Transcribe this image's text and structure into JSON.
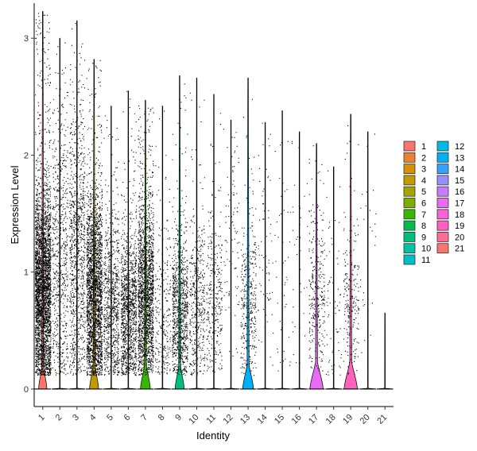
{
  "chart_data": {
    "type": "violin",
    "xlabel": "Identity",
    "ylabel": "Expression Level",
    "ylim": [
      -0.15,
      3.3
    ],
    "yticks": [
      0,
      1,
      2,
      3
    ],
    "grid": false,
    "legend_position": "right",
    "categories": [
      "1",
      "2",
      "3",
      "4",
      "5",
      "6",
      "7",
      "8",
      "9",
      "10",
      "11",
      "12",
      "13",
      "14",
      "15",
      "16",
      "17",
      "18",
      "19",
      "20",
      "21"
    ],
    "series": [
      {
        "name": "1",
        "color": "#F8766D",
        "max": 3.23,
        "points": 3200,
        "zero_width": 0.5,
        "nz_mean": 0.85,
        "nz_sd": 0.45
      },
      {
        "name": "2",
        "color": "#EA8331",
        "max": 3.0,
        "points": 650,
        "zero_width": 0.0,
        "nz_mean": 1.05,
        "nz_sd": 0.6
      },
      {
        "name": "3",
        "color": "#D89000",
        "max": 3.15,
        "points": 950,
        "zero_width": 0.0,
        "nz_mean": 1.15,
        "nz_sd": 0.6
      },
      {
        "name": "4",
        "color": "#C09B00",
        "max": 2.82,
        "points": 2400,
        "zero_width": 0.55,
        "nz_mean": 0.8,
        "nz_sd": 0.45
      },
      {
        "name": "5",
        "color": "#A3A500",
        "max": 2.42,
        "points": 800,
        "zero_width": 0.0,
        "nz_mean": 0.7,
        "nz_sd": 0.4
      },
      {
        "name": "6",
        "color": "#7CAE00",
        "max": 2.55,
        "points": 1200,
        "zero_width": 0.0,
        "nz_mean": 0.65,
        "nz_sd": 0.35
      },
      {
        "name": "7",
        "color": "#39B600",
        "max": 2.47,
        "points": 1900,
        "zero_width": 0.6,
        "nz_mean": 0.8,
        "nz_sd": 0.4
      },
      {
        "name": "8",
        "color": "#00BB4E",
        "max": 2.42,
        "points": 250,
        "zero_width": 0.0,
        "nz_mean": 0.6,
        "nz_sd": 0.4
      },
      {
        "name": "9",
        "color": "#00BF7D",
        "max": 2.68,
        "points": 900,
        "zero_width": 0.55,
        "nz_mean": 0.65,
        "nz_sd": 0.35
      },
      {
        "name": "10",
        "color": "#00C1A3",
        "max": 2.66,
        "points": 420,
        "zero_width": 0.0,
        "nz_mean": 0.7,
        "nz_sd": 0.4
      },
      {
        "name": "11",
        "color": "#00BFC4",
        "max": 2.52,
        "points": 300,
        "zero_width": 0.0,
        "nz_mean": 0.75,
        "nz_sd": 0.35
      },
      {
        "name": "12",
        "color": "#00BAE0",
        "max": 2.3,
        "points": 90,
        "zero_width": 0.0,
        "nz_mean": 1.3,
        "nz_sd": 0.5
      },
      {
        "name": "13",
        "color": "#00B0F6",
        "max": 2.66,
        "points": 360,
        "zero_width": 0.65,
        "nz_mean": 0.75,
        "nz_sd": 0.35
      },
      {
        "name": "14",
        "color": "#35A2FF",
        "max": 2.28,
        "points": 70,
        "zero_width": 0.0,
        "nz_mean": 1.2,
        "nz_sd": 0.5
      },
      {
        "name": "15",
        "color": "#9590FF",
        "max": 2.38,
        "points": 45,
        "zero_width": 0.0,
        "nz_mean": 0.9,
        "nz_sd": 0.6
      },
      {
        "name": "16",
        "color": "#C77CFF",
        "max": 2.2,
        "points": 40,
        "zero_width": 0.0,
        "nz_mean": 1.0,
        "nz_sd": 0.5
      },
      {
        "name": "17",
        "color": "#E76BF3",
        "max": 2.1,
        "points": 300,
        "zero_width": 0.8,
        "nz_mean": 0.8,
        "nz_sd": 0.35
      },
      {
        "name": "18",
        "color": "#FA62DB",
        "max": 1.9,
        "points": 65,
        "zero_width": 0.0,
        "nz_mean": 0.7,
        "nz_sd": 0.4
      },
      {
        "name": "19",
        "color": "#FF62BC",
        "max": 2.35,
        "points": 220,
        "zero_width": 0.8,
        "nz_mean": 0.75,
        "nz_sd": 0.35
      },
      {
        "name": "20",
        "color": "#FF6C91",
        "max": 2.2,
        "points": 28,
        "zero_width": 0.0,
        "nz_mean": 1.2,
        "nz_sd": 0.5
      },
      {
        "name": "21",
        "color": "#F8766D",
        "max": 0.65,
        "points": 0,
        "zero_width": 0.0,
        "nz_mean": 0.5,
        "nz_sd": 0.1
      }
    ]
  }
}
